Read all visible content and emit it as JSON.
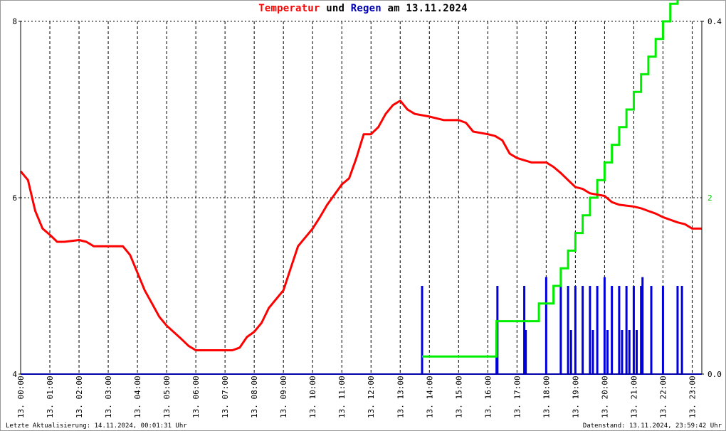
{
  "title": {
    "part1": "Temperatur",
    "part2": "und",
    "part3": "Regen",
    "part4": "am 13.11.2024"
  },
  "footer": {
    "left": "Letzte Aktualisierung: 14.11.2024, 00:01:31 Uhr",
    "right": "Datenstand: 13.11.2024, 23:59:42 Uhr"
  },
  "colors": {
    "temperature": "#ff0000",
    "rain_bars": "#0000dd",
    "rain_cumulative": "#00ee00",
    "right_ticks": "#00cc00",
    "grid": "#000000"
  },
  "chart_data": {
    "type": "line",
    "title": "Temperatur und Regen am 13.11.2024",
    "grid": true,
    "x_ticks": [
      "13. 00:00",
      "13. 01:00",
      "13. 02:00",
      "13. 03:00",
      "13. 04:00",
      "13. 05:00",
      "13. 06:00",
      "13. 07:00",
      "13. 08:00",
      "13. 09:00",
      "13. 10:00",
      "13. 11:00",
      "13. 12:00",
      "13. 13:00",
      "13. 14:00",
      "13. 15:00",
      "13. 16:00",
      "13. 17:00",
      "13. 18:00",
      "13. 19:00",
      "13. 20:00",
      "13. 21:00",
      "13. 22:00",
      "13. 23:00"
    ],
    "xlim_hours": [
      0,
      23.33
    ],
    "y_left": {
      "ylim": [
        4,
        8
      ],
      "ticks": [
        "4",
        "6",
        "8"
      ]
    },
    "y_right_inner": {
      "ticks": [
        "2"
      ]
    },
    "y_right_outer": {
      "ylim": [
        0.0,
        0.4
      ],
      "ticks": [
        "0.0",
        "0.4"
      ]
    },
    "series": [
      {
        "name": "Temperatur",
        "axis": "left",
        "hours": [
          0,
          0.25,
          0.5,
          0.75,
          1.0,
          1.25,
          1.5,
          2.0,
          2.25,
          2.5,
          3.0,
          3.5,
          3.75,
          4.0,
          4.25,
          4.5,
          4.75,
          5.0,
          5.5,
          5.75,
          6.0,
          6.5,
          7.0,
          7.25,
          7.5,
          7.75,
          8.0,
          8.25,
          8.5,
          9.0,
          9.25,
          9.5,
          10.0,
          10.25,
          10.5,
          11.0,
          11.25,
          11.5,
          11.75,
          12.0,
          12.25,
          12.5,
          12.75,
          13.0,
          13.25,
          13.5,
          14.0,
          14.5,
          15.0,
          15.25,
          15.5,
          16.0,
          16.25,
          16.5,
          16.75,
          17.0,
          17.5,
          18.0,
          18.25,
          18.5,
          18.75,
          19.0,
          19.25,
          19.5,
          20.0,
          20.25,
          20.5,
          21.0,
          21.25,
          21.5,
          21.75,
          22.0,
          22.25,
          22.5,
          22.75,
          23.0,
          23.33
        ],
        "values": [
          6.3,
          6.2,
          5.85,
          5.65,
          5.58,
          5.5,
          5.5,
          5.52,
          5.5,
          5.45,
          5.45,
          5.45,
          5.35,
          5.15,
          4.95,
          4.8,
          4.65,
          4.55,
          4.4,
          4.32,
          4.27,
          4.27,
          4.27,
          4.27,
          4.3,
          4.42,
          4.48,
          4.58,
          4.75,
          4.95,
          5.2,
          5.45,
          5.65,
          5.78,
          5.92,
          6.15,
          6.22,
          6.45,
          6.72,
          6.72,
          6.8,
          6.95,
          7.05,
          7.1,
          7.0,
          6.95,
          6.92,
          6.88,
          6.88,
          6.85,
          6.75,
          6.72,
          6.7,
          6.65,
          6.5,
          6.45,
          6.4,
          6.4,
          6.35,
          6.28,
          6.2,
          6.12,
          6.1,
          6.05,
          6.02,
          5.95,
          5.92,
          5.9,
          5.88,
          5.85,
          5.82,
          5.78,
          5.75,
          5.72,
          5.7,
          5.65,
          5.65
        ]
      },
      {
        "name": "Regen",
        "axis": "right",
        "style": "bars",
        "hours": [
          13.75,
          16.3,
          16.33,
          17.25,
          17.3,
          18.0,
          18.5,
          18.75,
          18.85,
          19.0,
          19.25,
          19.5,
          19.6,
          19.75,
          20.0,
          20.1,
          20.25,
          20.5,
          20.6,
          20.75,
          20.85,
          21.0,
          21.1,
          21.25,
          21.3,
          21.6,
          22.0,
          22.5,
          22.65
        ],
        "values": [
          0.1,
          0.05,
          0.1,
          0.1,
          0.05,
          0.11,
          0.1,
          0.1,
          0.05,
          0.1,
          0.1,
          0.1,
          0.05,
          0.1,
          0.11,
          0.05,
          0.1,
          0.1,
          0.05,
          0.1,
          0.05,
          0.1,
          0.05,
          0.1,
          0.11,
          0.1,
          0.1,
          0.1,
          0.1
        ]
      },
      {
        "name": "Regen kumuliert",
        "axis": "right",
        "style": "step",
        "hours": [
          13.75,
          16.3,
          17.25,
          17.75,
          18.0,
          18.25,
          18.5,
          18.75,
          19.0,
          19.25,
          19.5,
          19.75,
          20.0,
          20.25,
          20.5,
          20.75,
          21.0,
          21.25,
          21.5,
          21.75,
          22.0,
          22.25,
          22.5,
          22.75,
          23.33
        ],
        "values": [
          0.2,
          0.6,
          0.6,
          0.8,
          0.8,
          1.0,
          1.2,
          1.4,
          1.6,
          1.8,
          2.0,
          2.2,
          2.4,
          2.6,
          2.8,
          3.0,
          3.2,
          3.4,
          3.6,
          3.8,
          4.0,
          4.2,
          4.4,
          4.6,
          4.6
        ]
      }
    ]
  }
}
